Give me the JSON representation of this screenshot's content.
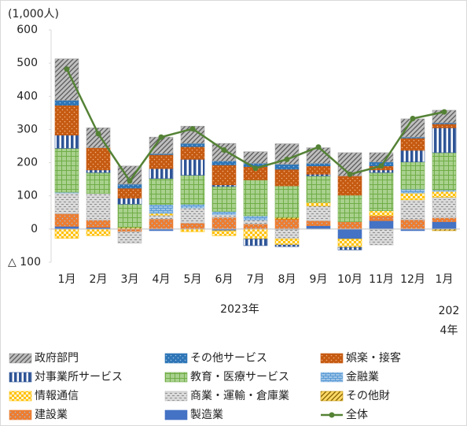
{
  "chart_data": {
    "type": "bar",
    "stacked": true,
    "unit_label": "(1,000人)",
    "categories": [
      "1月",
      "2月",
      "3月",
      "4月",
      "5月",
      "6月",
      "7月",
      "8月",
      "9月",
      "10月",
      "11月",
      "12月",
      "1月"
    ],
    "groups": [
      "2023年",
      "2024年"
    ],
    "ylim": [
      -100,
      600
    ],
    "yticks": [
      {
        "value": -100,
        "label": "△ 100"
      },
      0,
      100,
      200,
      300,
      400,
      500,
      600
    ],
    "series": [
      {
        "name": "政府部門",
        "color": "#a6a6a6",
        "values": [
          125,
          60,
          55,
          50,
          52,
          53,
          35,
          62,
          47,
          70,
          28,
          55,
          38
        ]
      },
      {
        "name": "その他サービス",
        "color": "#2e75b6",
        "values": [
          15,
          0,
          12,
          3,
          10,
          12,
          10,
          15,
          8,
          0,
          12,
          3,
          3
        ]
      },
      {
        "name": "娯楽・接客",
        "color": "#c55a11",
        "values": [
          90,
          67,
          30,
          42,
          38,
          60,
          40,
          50,
          25,
          58,
          12,
          37,
          12
        ]
      },
      {
        "name": "対事業所サービス",
        "color": "#2f5597",
        "values": [
          40,
          8,
          18,
          30,
          48,
          5,
          -20,
          -5,
          5,
          -8,
          8,
          35,
          75
        ]
      },
      {
        "name": "教育・医療サービス",
        "color": "#70ad47",
        "values": [
          132,
          63,
          70,
          78,
          87,
          75,
          108,
          95,
          80,
          80,
          115,
          82,
          112
        ]
      },
      {
        "name": "金融業",
        "color": "#9dc3e6",
        "values": [
          3,
          0,
          0,
          27,
          12,
          10,
          13,
          0,
          0,
          0,
          0,
          12,
          5
        ]
      },
      {
        "name": "情報通信",
        "color": "#ffc000",
        "values": [
          -28,
          -20,
          0,
          5,
          -8,
          -15,
          -30,
          -18,
          10,
          -25,
          15,
          20,
          17
        ]
      },
      {
        "name": "商業・運輸・倉庫業",
        "color": "#bfbfbf",
        "values": [
          62,
          80,
          -35,
          12,
          45,
          8,
          12,
          -28,
          45,
          0,
          -48,
          60,
          62
        ]
      },
      {
        "name": "その他財",
        "color": "#bf9000",
        "values": [
          0,
          0,
          5,
          0,
          0,
          0,
          0,
          5,
          0,
          0,
          0,
          0,
          -5
        ]
      },
      {
        "name": "建設業",
        "color": "#ed7d31",
        "values": [
          38,
          22,
          -8,
          30,
          18,
          35,
          15,
          30,
          15,
          22,
          15,
          28,
          12
        ]
      },
      {
        "name": "製造業",
        "color": "#4472c4",
        "values": [
          8,
          5,
          0,
          -5,
          0,
          -5,
          0,
          -2,
          10,
          -30,
          25,
          -5,
          22
        ]
      },
      {
        "name": "全体",
        "type": "line",
        "color": "#548235",
        "values": [
          482,
          287,
          145,
          277,
          302,
          238,
          183,
          210,
          247,
          165,
          190,
          333,
          353
        ]
      }
    ]
  }
}
